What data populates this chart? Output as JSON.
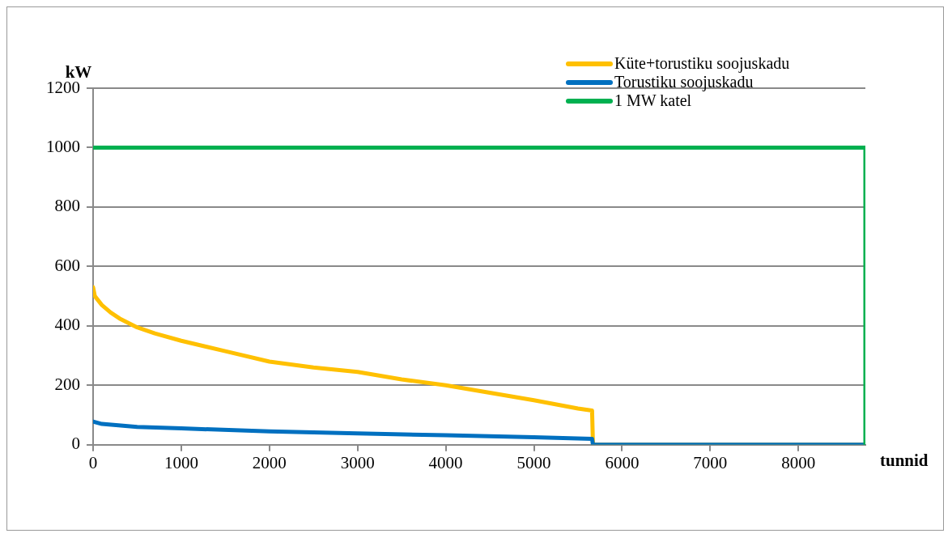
{
  "chart_data": {
    "type": "line",
    "xlabel": "tunnid",
    "ylabel": "kW",
    "xlim": [
      0,
      8760
    ],
    "xticks": [
      0,
      1000,
      2000,
      3000,
      4000,
      5000,
      6000,
      7000,
      8000
    ],
    "ylim": [
      0,
      1200
    ],
    "yticks": [
      0,
      200,
      400,
      600,
      800,
      1000,
      1200
    ],
    "grid": "y",
    "legend": "top right",
    "marker": "none",
    "line_style": "solid",
    "series": [
      {
        "name": "Küte+torustiku soojuskadu",
        "color": "#ffc000",
        "x": [
          0,
          20,
          100,
          200,
          300,
          500,
          700,
          1000,
          1500,
          2000,
          2500,
          3000,
          3500,
          4000,
          4500,
          5000,
          5500,
          5660,
          5670,
          8760
        ],
        "values": [
          530,
          500,
          470,
          445,
          425,
          395,
          375,
          350,
          315,
          280,
          260,
          245,
          220,
          200,
          175,
          150,
          122,
          115,
          0,
          0
        ]
      },
      {
        "name": "Torustiku soojuskadu",
        "color": "#0070c0",
        "x": [
          0,
          100,
          500,
          1000,
          2000,
          3000,
          4000,
          5000,
          5660,
          5670,
          8760
        ],
        "values": [
          78,
          70,
          60,
          55,
          45,
          38,
          32,
          25,
          20,
          0,
          0
        ]
      },
      {
        "name": "1 MW katel",
        "color": "#00b050",
        "x": [
          0,
          8760,
          8760
        ],
        "values": [
          1000,
          1000,
          0
        ]
      }
    ]
  }
}
